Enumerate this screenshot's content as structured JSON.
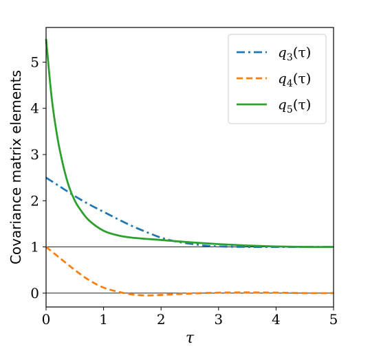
{
  "chart_data": {
    "type": "line",
    "title": "",
    "xlabel": "τ",
    "ylabel": "Covariance matrix elements",
    "xlim": [
      0,
      5
    ],
    "ylim": [
      -0.3,
      5.75
    ],
    "xticks": [
      "0",
      "1",
      "2",
      "3",
      "4",
      "5"
    ],
    "yticks": [
      "0",
      "1",
      "2",
      "3",
      "4",
      "5"
    ],
    "grid": false,
    "legend_position": "top-right",
    "reference_lines": [
      0,
      1
    ],
    "series": [
      {
        "name": "q3(τ)",
        "legend_base": "q",
        "legend_sub": "3",
        "legend_arg": "(τ)",
        "color": "#1f77b4",
        "style": "dashdot",
        "x": [
          0,
          0.25,
          0.5,
          0.75,
          1.0,
          1.25,
          1.5,
          1.75,
          2.0,
          2.25,
          2.5,
          2.75,
          3.0,
          3.5,
          4.0,
          4.5,
          5.0
        ],
        "y": [
          2.5,
          2.3,
          2.1,
          1.92,
          1.76,
          1.6,
          1.45,
          1.32,
          1.2,
          1.12,
          1.07,
          1.03,
          1.01,
          1.0,
          1.0,
          1.0,
          1.0
        ]
      },
      {
        "name": "q4(τ)",
        "legend_base": "q",
        "legend_sub": "4",
        "legend_arg": "(τ)",
        "color": "#ff7f0e",
        "style": "dashed",
        "x": [
          0,
          0.25,
          0.5,
          0.75,
          1.0,
          1.25,
          1.5,
          1.75,
          2.0,
          2.5,
          3.0,
          3.5,
          4.0,
          4.5,
          5.0
        ],
        "y": [
          1.0,
          0.75,
          0.5,
          0.28,
          0.12,
          0.03,
          -0.03,
          -0.05,
          -0.04,
          -0.01,
          0.01,
          0.015,
          0.01,
          0.0,
          0.0
        ]
      },
      {
        "name": "q5(τ)",
        "legend_base": "q",
        "legend_sub": "5",
        "legend_arg": "(τ)",
        "color": "#2ca02c",
        "style": "solid",
        "x": [
          0,
          0.1,
          0.2,
          0.3,
          0.4,
          0.5,
          0.6,
          0.75,
          1.0,
          1.25,
          1.5,
          2.0,
          2.5,
          3.0,
          3.5,
          4.0,
          4.5,
          5.0
        ],
        "y": [
          5.5,
          4.2,
          3.35,
          2.75,
          2.3,
          2.0,
          1.8,
          1.57,
          1.35,
          1.25,
          1.2,
          1.15,
          1.1,
          1.06,
          1.03,
          1.01,
          1.0,
          1.0
        ]
      }
    ]
  }
}
